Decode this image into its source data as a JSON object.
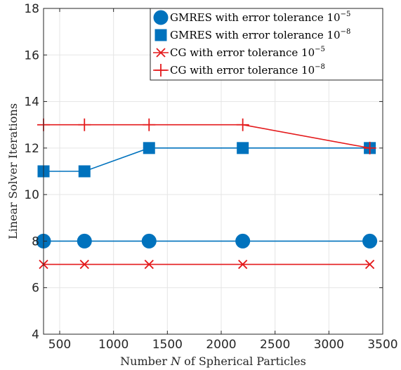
{
  "chart_data": {
    "type": "line",
    "xlabel_prefix": "Number ",
    "xlabel_var": "N",
    "xlabel_suffix": " of Spherical Particles",
    "ylabel": "Linear Solver Iterations",
    "xlim": [
      350,
      3500
    ],
    "ylim": [
      4,
      18
    ],
    "xticks": [
      500,
      1000,
      1500,
      2000,
      2500,
      3000,
      3500
    ],
    "yticks": [
      4,
      6,
      8,
      10,
      12,
      14,
      16,
      18
    ],
    "grid": true,
    "legend_position": "top-right",
    "x": [
      350,
      730,
      1330,
      2200,
      3380
    ],
    "series": [
      {
        "name": "GMRES with error tolerance 10",
        "exponent": "−5",
        "color": "#0072BD",
        "marker": "circle",
        "values": [
          8,
          8,
          8,
          8,
          8
        ]
      },
      {
        "name": "GMRES with error tolerance 10",
        "exponent": "−8",
        "color": "#0072BD",
        "marker": "square",
        "values": [
          11,
          11,
          12,
          12,
          12
        ]
      },
      {
        "name": "CG with error tolerance 10",
        "exponent": "−5",
        "color": "#E41A1C",
        "marker": "x",
        "values": [
          7,
          7,
          7,
          7,
          7
        ]
      },
      {
        "name": "CG with error tolerance 10",
        "exponent": "−8",
        "color": "#E41A1C",
        "marker": "plus",
        "values": [
          13,
          13,
          13,
          13,
          12
        ]
      }
    ]
  }
}
